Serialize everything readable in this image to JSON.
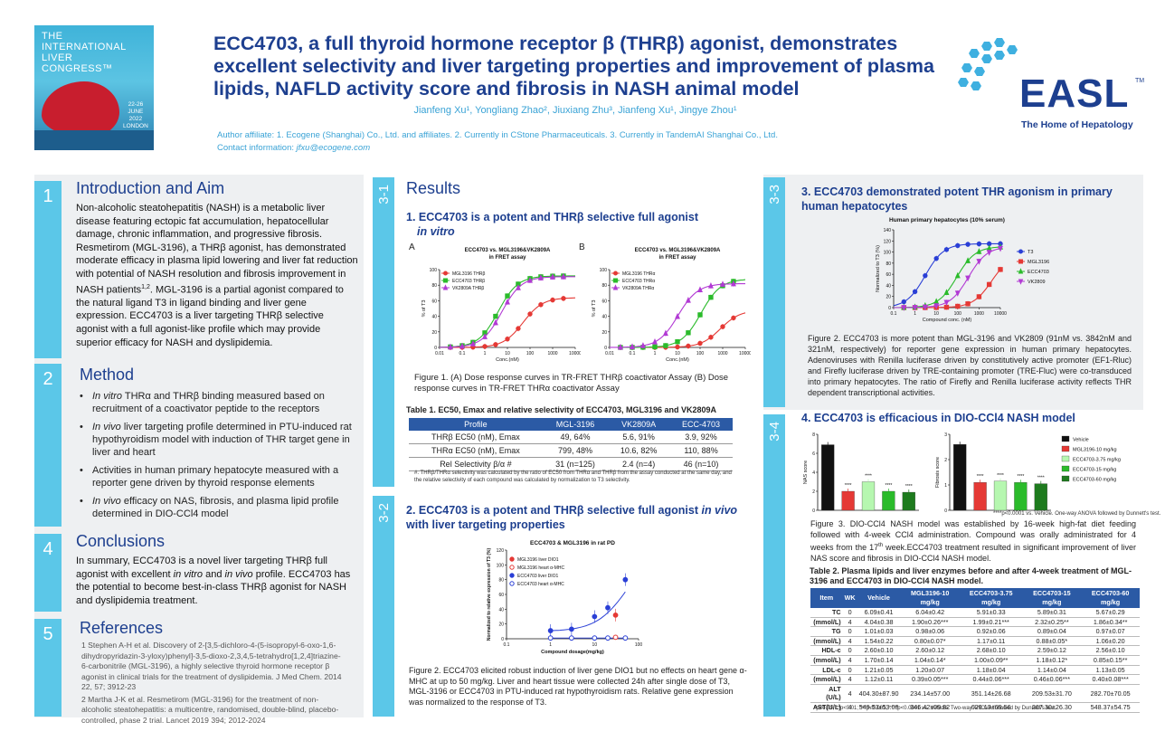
{
  "header": {
    "title": "ECC4703, a full thyroid hormone receptor β (THRβ) agonist, demonstrates excellent selectivity and liver targeting properties and improvement of plasma lipids, NAFLD activity score and fibrosis in NASH animal model",
    "authors": "Jianfeng Xu¹, Yongliang Zhao², Jiuxiang Zhu³, Jianfeng Xu¹, Jingye Zhou¹",
    "affiliation": "Author affiliate: 1. Ecogene (Shanghai) Co., Ltd. and affiliates.  2. Currently in CStone Pharmaceuticals.  3. Currently in TandemAI Shanghai Co., Ltd.",
    "contact_label": "Contact information: ",
    "contact_email": "jfxu@ecogene.com",
    "ilc_logo": {
      "line1": "THE",
      "line2": "INTERNATIONAL",
      "line3": "LIVER",
      "line4": "CONGRESS™",
      "dates": "22-26",
      "month": "JUNE",
      "year": "2022",
      "city": "LONDON"
    },
    "easl_logo": {
      "word": "EASL",
      "tm": "TM",
      "tagline": "The Home of Hepatology"
    }
  },
  "intro": {
    "num": "1",
    "heading": "Introduction and Aim",
    "text_a": "Non-alcoholic steatohepatitis (NASH) is a metabolic liver disease featuring ectopic fat accumulation, hepatocellular damage, chronic inflammation, and progressive fibrosis. Resmetirom (MGL-3196), a THRβ agonist, has demonstrated moderate efficacy in plasma lipid lowering and liver fat reduction with potential of NASH resolution and fibrosis improvement in NASH patients",
    "text_sup": "1,2",
    "text_b": ". MGL-3196 is a partial agonist compared to the natural ligand T3 in ligand binding and liver gene expression. ECC4703 is a liver targeting THRβ selective agonist with a full agonist-like profile which may provide superior efficacy for NASH and dyslipidemia."
  },
  "method": {
    "num": "2",
    "heading": "Method",
    "items": [
      {
        "em": "In vitro",
        "text": " THRα and THRβ binding measured based on recruitment of a coactivator peptide to the receptors"
      },
      {
        "em": "In vivo",
        "text": " liver targeting profile determined in PTU-induced rat hypothyroidism model with induction of THR target gene in liver and heart"
      },
      {
        "em": "",
        "text": "Activities in human primary hepatocyte measured with a reporter gene driven by thyroid response elements"
      },
      {
        "em": "In vivo",
        "text": " efficacy on NAS, fibrosis, and plasma lipid profile determined in DIO-CCl4 model"
      }
    ]
  },
  "conclusions": {
    "num": "4",
    "heading": "Conclusions",
    "text_a": "In summary, ECC4703 is a novel liver targeting THRβ full agonist with excellent ",
    "em1": "in vitro",
    "text_b": " and ",
    "em2": "in vivo",
    "text_c": " profile. ECC4703 has the potential to become best-in-class THRβ agonist for NASH and dyslipidemia treatment."
  },
  "references": {
    "num": "5",
    "heading": "References",
    "r1": "1 Stephen A-H et al. Discovery of 2-[3,5-dichloro-4-(5-isopropyl-6-oxo-1,6-dihydropyridazin-3-yloxy)phenyl]-3,5-dioxo-2,3,4,5-tetrahydro[1,2,4]triazine-6-carbonitrile (MGL-3196), a highly selective thyroid hormone receptor β agonist in clinical trials for the treatment of dyslipidemia. J Med Chem. 2014 22, 57; 3912-23",
    "r2": "2 Martha J-K et al. Resmetirom (MGL-3196) for the treatment of non-alcoholic steatohepatitis: a multicentre, randomised, double-blind, placebo-controlled, phase 2 trial. Lancet 2019 394; 2012-2024"
  },
  "results": {
    "heading": "Results",
    "s31": {
      "tab": "3-1",
      "title_a": "1. ECC4703 is a potent and THRβ selective full agonist ",
      "title_em": "in vitro",
      "panel_a": "A",
      "panel_b": "B",
      "fig_caption": "Figure 1. (A) Dose response curves in TR-FRET THRβ coactivator Assay (B) Dose response curves in TR-FRET THRα coactivator Assay",
      "table_title": "Table 1. EC50, Emax and relative selectivity of ECC4703, MGL3196 and VK2809A",
      "table_headers": [
        "Profile",
        "MGL-3196",
        "VK2809A",
        "ECC-4703"
      ],
      "table_rows": [
        [
          "THRβ EC50 (nM), Emax",
          "49, 64%",
          "5.6, 91%",
          "3.9, 92%"
        ],
        [
          "THRα EC50 (nM), Emax",
          "799, 48%",
          "10.6, 82%",
          "110, 88%"
        ],
        [
          "Rel Selectivity β/α #",
          "31 (n=125)",
          "2.4 (n=4)",
          "46 (n=10)"
        ]
      ],
      "table_note": "#.  THRβ/THRα selectivity was calculated by the ratio of EC50 from THRα and THRβ from the assay conducted at the same day, and the relative selectivity of each compound was calculated by normalization to T3 selectivity."
    },
    "s32": {
      "tab": "3-2",
      "title_a": "2. ECC4703 is a potent and THRβ selective full agonist ",
      "title_em": "in vivo",
      "title_b": " with liver targeting properties",
      "fig_caption": "Figure 2. ECC4703 elicited robust induction of liver gene DIO1 but no effects on heart gene α-MHC at up to 50 mg/kg. Liver and heart tissue were collected 24h after single dose of T3, MGL-3196 or ECC4703 in PTU-induced rat hypothyroidism rats. Relative gene expression was normalized to the response of T3."
    },
    "s33": {
      "tab": "3-3",
      "title": "3. ECC4703 demonstrated potent THR agonism in primary human hepatocytes",
      "fig_caption": "Figure 2. ECC4703 is more potent than MGL-3196 and VK2809 (91nM vs. 3842nM and 321nM, respectively) for reporter gene expression in human primary hepatocytes. Adenoviruses with Renilla luciferase driven by constitutively active promoter (EF1-Rluc) and Firefly luciferase driven by TRE-containing promoter (TRE-Fluc) were co-transduced into primary hepatocytes. The ratio of Firefly and Renilla luciferase activity  reflects THR dependent transcriptional activities."
    },
    "s34": {
      "tab": "3-4",
      "title": "4. ECC4703 is efficacious in DIO-CCl4 NASH model",
      "fig_caption_a": "Figure 3. DIO-CCl4 NASH model was established by 16-week high-fat diet feeding followed with 4-week CCl4 administration. Compound was orally administrated for 4 weeks from the 17",
      "fig_caption_sup": "th",
      "fig_caption_b": " week.ECC4703 treatment resulted in significant improvement of liver NAS score and fibrosis in DIO-CCl4 NASH model.",
      "stat_note": "****p<0.0001 vs. Vehicle.  One-way ANOVA followed by Dunnett's test.",
      "table_title": "Table 2. Plasma lipids and liver enzymes before and after 4-week treatment of MGL-3196 and ECC4703 in DIO-CCl4 NASH model.",
      "table_headers": [
        "Item",
        "WK",
        "Vehicle",
        "MGL3196-10 mg/kg",
        "ECC4703-3.75 mg/kg",
        "ECC4703-15 mg/kg",
        "ECC4703-60 mg/kg"
      ],
      "table_rows": [
        [
          "TC",
          "0",
          "6.09±0.41",
          "6.04±0.42",
          "5.91±0.33",
          "5.89±0.31",
          "5.67±0.29"
        ],
        [
          "(mmol/L)",
          "4",
          "4.04±0.38",
          "1.90±0.26***",
          "1.99±0.21***",
          "2.32±0.25**",
          "1.86±0.34**"
        ],
        [
          "TG",
          "0",
          "1.01±0.03",
          "0.98±0.06",
          "0.92±0.06",
          "0.89±0.04",
          "0.97±0.07"
        ],
        [
          "(mmol/L)",
          "4",
          "1.54±0.22",
          "0.80±0.07*",
          "1.17±0.11",
          "0.88±0.05*",
          "1.06±0.20"
        ],
        [
          "HDL-c",
          "0",
          "2.60±0.10",
          "2.60±0.12",
          "2.68±0.10",
          "2.59±0.12",
          "2.56±0.10"
        ],
        [
          "(mmol/L)",
          "4",
          "1.70±0.14",
          "1.04±0.14*",
          "1.00±0.09**",
          "1.18±0.12*",
          "0.85±0.15**"
        ],
        [
          "LDL-c",
          "0",
          "1.21±0.05",
          "1.20±0.07",
          "1.18±0.04",
          "1.14±0.04",
          "1.13±0.05"
        ],
        [
          "(mmol/L)",
          "4",
          "1.12±0.11",
          "0.39±0.05***",
          "0.44±0.06***",
          "0.46±0.06***",
          "0.40±0.08***"
        ],
        [
          "ALT (U/L)",
          "4",
          "404.30±87.90",
          "234.14±57.00",
          "351.14±26.68",
          "209.53±31.70",
          "282.70±70.05"
        ],
        [
          "AST(U/L)",
          "4",
          "549.53±53.08",
          "346.42±09.82",
          "629.13±69.56",
          "267.30±26.30",
          "548.37±54.75"
        ]
      ],
      "table_note": "*p<0.05; **p<0.01; ***p<0.001; ****p<0.0001 vs. Vehicle. Two-way ANOVA followed by Dunnett's test."
    }
  },
  "chart_data": [
    {
      "type": "line",
      "title": "ECC4703 vs. MGL3196&VK2809A in FRET assay",
      "subtitle": "in FRET assay",
      "panel": "A",
      "xlabel": "Conc.(nM)",
      "ylabel": "% of T3",
      "xscale": "log",
      "xlim": [
        0.01,
        10000
      ],
      "ylim": [
        0,
        100
      ],
      "xticks": [
        "0.01",
        "0.1",
        "1",
        "10",
        "100",
        "1000",
        "10000"
      ],
      "yticks": [
        "0",
        "20",
        "40",
        "60",
        "80",
        "100"
      ],
      "series": [
        {
          "name": "MGL3196 THRβ",
          "color": "#e53935",
          "marker": "circle",
          "ec50": 49,
          "emax": 64
        },
        {
          "name": "ECC4703 THRβ",
          "color": "#2bbb2b",
          "marker": "square",
          "ec50": 3.9,
          "emax": 92
        },
        {
          "name": "VK2809A THRβ",
          "color": "#b23ad4",
          "marker": "triangle",
          "ec50": 5.6,
          "emax": 91
        }
      ],
      "legend": "top-left"
    },
    {
      "type": "line",
      "title": "ECC4703 vs. MGL3196&VK2809A in FRET assay",
      "subtitle": "in FRET assay",
      "panel": "B",
      "xlabel": "Conc.(nM)",
      "ylabel": "% of T3",
      "xscale": "log",
      "xlim": [
        0.01,
        10000
      ],
      "ylim": [
        0,
        100
      ],
      "xticks": [
        "0.01",
        "0.1",
        "1",
        "10",
        "100",
        "1000",
        "10000"
      ],
      "yticks": [
        "0",
        "20",
        "40",
        "60",
        "80",
        "100"
      ],
      "series": [
        {
          "name": "MGL3196 THRα",
          "color": "#e53935",
          "marker": "circle",
          "ec50": 799,
          "emax": 48
        },
        {
          "name": "ECC4703 THRα",
          "color": "#2bbb2b",
          "marker": "square",
          "ec50": 110,
          "emax": 88
        },
        {
          "name": "VK2809A THRα",
          "color": "#b23ad4",
          "marker": "triangle",
          "ec50": 10.6,
          "emax": 82
        }
      ],
      "legend": "top-left"
    },
    {
      "type": "scatter",
      "title": "ECC4703 & MGL3196 in rat PD",
      "xlabel": "Compound dosage(mg/kg)",
      "ylabel": "Normalized to relative expression of T3 (%)",
      "xscale": "log",
      "xlim": [
        0.1,
        100
      ],
      "ylim": [
        0,
        120
      ],
      "xticks": [
        "0.1",
        "1",
        "10",
        "100"
      ],
      "yticks": [
        "0",
        "20",
        "40",
        "60",
        "80",
        "100",
        "120"
      ],
      "series": [
        {
          "name": "MGL3196 liver DIO1",
          "color": "#e53935",
          "fill": true,
          "x": [
            30
          ],
          "y": [
            32
          ]
        },
        {
          "name": "MGL3196 heart α-MHC",
          "color": "#e53935",
          "fill": false,
          "x": [
            30
          ],
          "y": [
            2
          ]
        },
        {
          "name": "ECC4703 liver DIO1",
          "color": "#2a3fd6",
          "fill": true,
          "x": [
            1,
            3,
            10,
            20,
            50
          ],
          "y": [
            11,
            13,
            30,
            42,
            80
          ]
        },
        {
          "name": "ECC4703 heart α-MHC",
          "color": "#2a3fd6",
          "fill": false,
          "x": [
            1,
            3,
            10,
            20,
            50
          ],
          "y": [
            1,
            1,
            1,
            1,
            1
          ]
        }
      ],
      "legend": "top-left"
    },
    {
      "type": "line",
      "title": "Human primary hepatocytes (10% serum)",
      "xlabel": "Compound conc. (nM)",
      "ylabel": "Normalized to T3 (%)",
      "xscale": "log",
      "xlim": [
        0.1,
        10000
      ],
      "ylim": [
        0,
        140
      ],
      "xticks": [
        "0.1",
        "1",
        "10",
        "100",
        "1000",
        "10000"
      ],
      "yticks": [
        "0",
        "20",
        "40",
        "60",
        "80",
        "100",
        "120",
        "140"
      ],
      "series": [
        {
          "name": "T3",
          "color": "#2a3fd6",
          "marker": "circle",
          "ec50": 3,
          "emax": 115
        },
        {
          "name": "MGL3196",
          "color": "#e53935",
          "marker": "square",
          "ec50": 3842,
          "emax": 95
        },
        {
          "name": "ECC4703",
          "color": "#2bbb2b",
          "marker": "triangle",
          "ec50": 91,
          "emax": 110
        },
        {
          "name": "VK2809",
          "color": "#b23ad4",
          "marker": "triangle-down",
          "ec50": 321,
          "emax": 110
        }
      ],
      "legend": "right"
    },
    {
      "type": "bar",
      "title": "",
      "ylabel": "NAS score",
      "ylim": [
        0,
        8
      ],
      "yticks": [
        "0",
        "2",
        "4",
        "6",
        "8"
      ],
      "categories": [
        "Vehicle",
        "MGL3196-10 mg/kg",
        "ECC4703-3.75 mg/kg",
        "ECC4703-15 mg/kg",
        "ECC4703-60 mg/kg"
      ],
      "values": [
        6.9,
        2.0,
        3.0,
        2.0,
        1.9
      ],
      "colors": [
        "#111111",
        "#e53935",
        "#b6f7b0",
        "#2bbb2b",
        "#1e7b1e"
      ],
      "annotations": [
        "",
        "****",
        "****",
        "****",
        "****"
      ]
    },
    {
      "type": "bar",
      "title": "",
      "ylabel": "Fibrosis score",
      "ylim": [
        0,
        3
      ],
      "yticks": [
        "0",
        "1",
        "2",
        "3"
      ],
      "categories": [
        "Vehicle",
        "MGL3196-10 mg/kg",
        "ECC4703-3.75 mg/kg",
        "ECC4703-15 mg/kg",
        "ECC4703-60 mg/kg"
      ],
      "values": [
        2.6,
        1.1,
        1.15,
        1.1,
        1.05
      ],
      "colors": [
        "#111111",
        "#e53935",
        "#b6f7b0",
        "#2bbb2b",
        "#1e7b1e"
      ],
      "annotations": [
        "",
        "****",
        "****",
        "****",
        "****"
      ],
      "legend": "right"
    }
  ]
}
